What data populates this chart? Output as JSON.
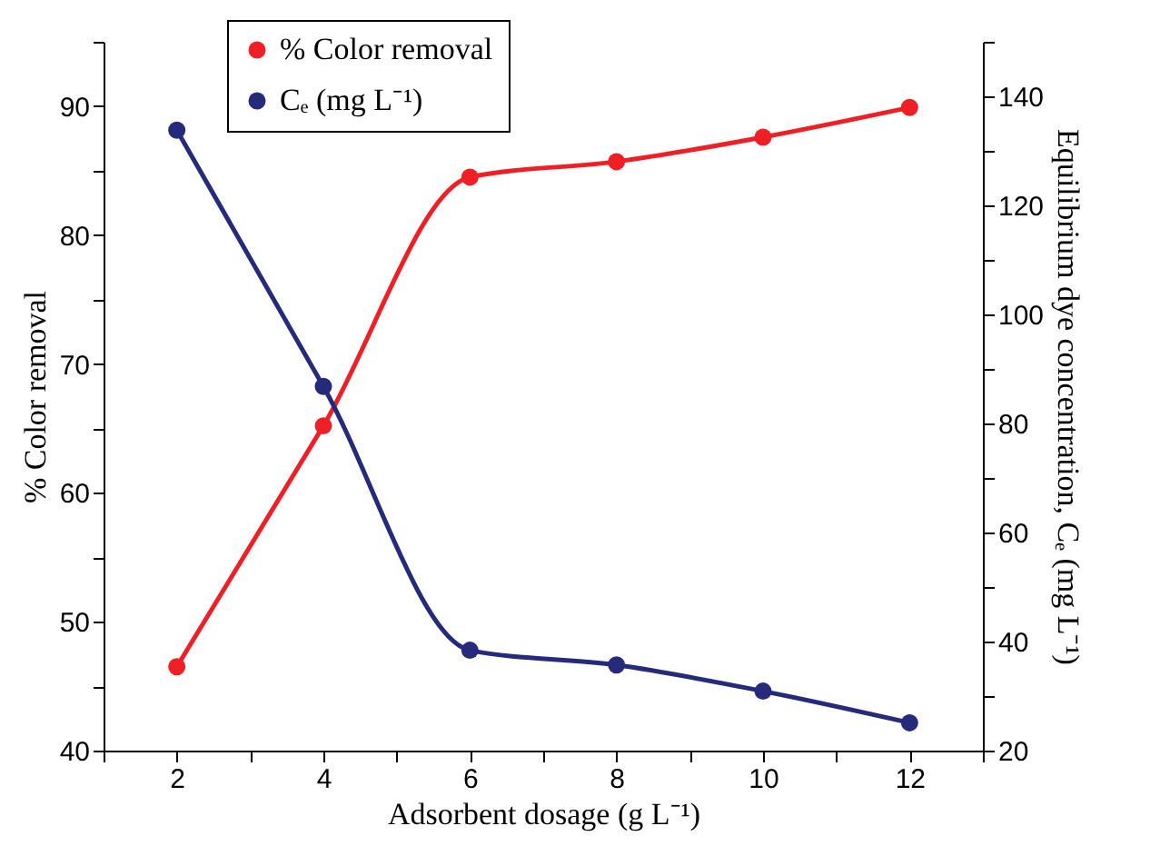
{
  "chart_data": {
    "type": "line",
    "xlabel": "Adsorbent dosage (g L⁻¹)",
    "ylabel": "% Color removal",
    "y2label": "Equilibrium dye concentration, Cₑ (mg L⁻¹)",
    "x": [
      2,
      4,
      6,
      8,
      10,
      12
    ],
    "series": [
      {
        "name": "% Color removal",
        "color": "#ee2025",
        "values": [
          46.5,
          65.2,
          84.5,
          85.7,
          87.6,
          89.9
        ]
      },
      {
        "name": "Cₑ (mg L⁻¹)",
        "color": "#262a7a",
        "axis": "y2",
        "values": [
          133.8,
          86.8,
          38.4,
          35.7,
          30.9,
          25.1
        ]
      }
    ],
    "xlim": [
      1,
      13
    ],
    "xticks": [
      {
        "value": 1,
        "label": null
      },
      2,
      {
        "value": 3,
        "label": null
      },
      4,
      {
        "value": 5,
        "label": null
      },
      6,
      {
        "value": 7,
        "label": null
      },
      8,
      {
        "value": 9,
        "label": null
      },
      10,
      {
        "value": 11,
        "label": null
      },
      12,
      {
        "value": 13,
        "label": null
      }
    ],
    "ylim": [
      40,
      95
    ],
    "yticks": [
      40,
      {
        "value": 45,
        "label": null
      },
      50,
      {
        "value": 55,
        "label": null
      },
      60,
      {
        "value": 65,
        "label": null
      },
      70,
      {
        "value": 75,
        "label": null
      },
      80,
      {
        "value": 85,
        "label": null
      },
      90,
      {
        "value": 95,
        "label": null
      }
    ],
    "y2lim": [
      20,
      150
    ],
    "y2ticks": [
      20,
      {
        "value": 30,
        "label": null
      },
      40,
      {
        "value": 50,
        "label": null
      },
      60,
      {
        "value": 70,
        "label": null
      },
      80,
      {
        "value": 90,
        "label": null
      },
      100,
      {
        "value": 110,
        "label": null
      },
      120,
      {
        "value": 130,
        "label": null
      },
      140,
      {
        "value": 150,
        "label": null
      }
    ],
    "marker": "circle",
    "line_style": "solid",
    "grid": false,
    "legend": "top left"
  }
}
